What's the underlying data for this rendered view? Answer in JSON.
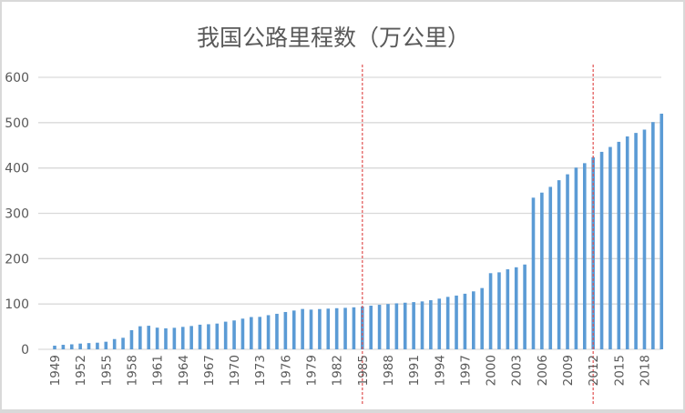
{
  "chart_data": {
    "type": "bar",
    "title": "我国公路里程数（万公里）",
    "xlabel": "",
    "ylabel": "",
    "ylim": [
      0,
      600
    ],
    "yticks": [
      0,
      100,
      200,
      300,
      400,
      500,
      600
    ],
    "grid": true,
    "legend": "none",
    "bar_color": "#5b9bd5",
    "reference_line_color": "#e05050",
    "reference_lines": [
      "1985",
      "2012"
    ],
    "categories": [
      "1949",
      "1950",
      "1951",
      "1952",
      "1953",
      "1954",
      "1955",
      "1956",
      "1957",
      "1958",
      "1959",
      "1960",
      "1961",
      "1962",
      "1963",
      "1964",
      "1965",
      "1966",
      "1967",
      "1968",
      "1969",
      "1970",
      "1971",
      "1972",
      "1973",
      "1974",
      "1975",
      "1976",
      "1977",
      "1978",
      "1979",
      "1980",
      "1981",
      "1982",
      "1983",
      "1984",
      "1985",
      "1986",
      "1987",
      "1988",
      "1989",
      "1990",
      "1991",
      "1992",
      "1993",
      "1994",
      "1995",
      "1996",
      "1997",
      "1998",
      "1999",
      "2000",
      "2001",
      "2002",
      "2003",
      "2004",
      "2005",
      "2006",
      "2007",
      "2008",
      "2009",
      "2010",
      "2011",
      "2012",
      "2013",
      "2014",
      "2015",
      "2016",
      "2017",
      "2018",
      "2019",
      "2020"
    ],
    "tick_labels": [
      "1949",
      "1952",
      "1955",
      "1958",
      "1961",
      "1964",
      "1967",
      "1970",
      "1973",
      "1976",
      "1979",
      "1982",
      "1985",
      "1988",
      "1991",
      "1994",
      "1997",
      "2000",
      "2003",
      "2006",
      "2009",
      "2012",
      "2015",
      "2018"
    ],
    "values": [
      8.07,
      9.96,
      11.03,
      12.67,
      13.73,
      14.61,
      16.73,
      22.63,
      25.46,
      42.27,
      50.87,
      51.99,
      47.79,
      46.35,
      47.51,
      49.5,
      51.45,
      54.36,
      55.34,
      56.8,
      60.99,
      63.67,
      67.7,
      71.2,
      71.59,
      75.3,
      78.36,
      82.34,
      85.56,
      89.02,
      87.58,
      88.83,
      89.75,
      90.7,
      91.51,
      92.67,
      94.24,
      96.28,
      98.22,
      99.96,
      101.43,
      102.83,
      104.11,
      105.67,
      108.35,
      111.78,
      115.7,
      118.58,
      122.64,
      127.85,
      135.17,
      167.98,
      169.8,
      176.52,
      180.98,
      187.07,
      334.52,
      345.7,
      358.37,
      373.02,
      386.08,
      400.82,
      410.64,
      423.75,
      435.62,
      446.39,
      457.73,
      469.63,
      477.35,
      484.65,
      501.25,
      519.81
    ]
  }
}
